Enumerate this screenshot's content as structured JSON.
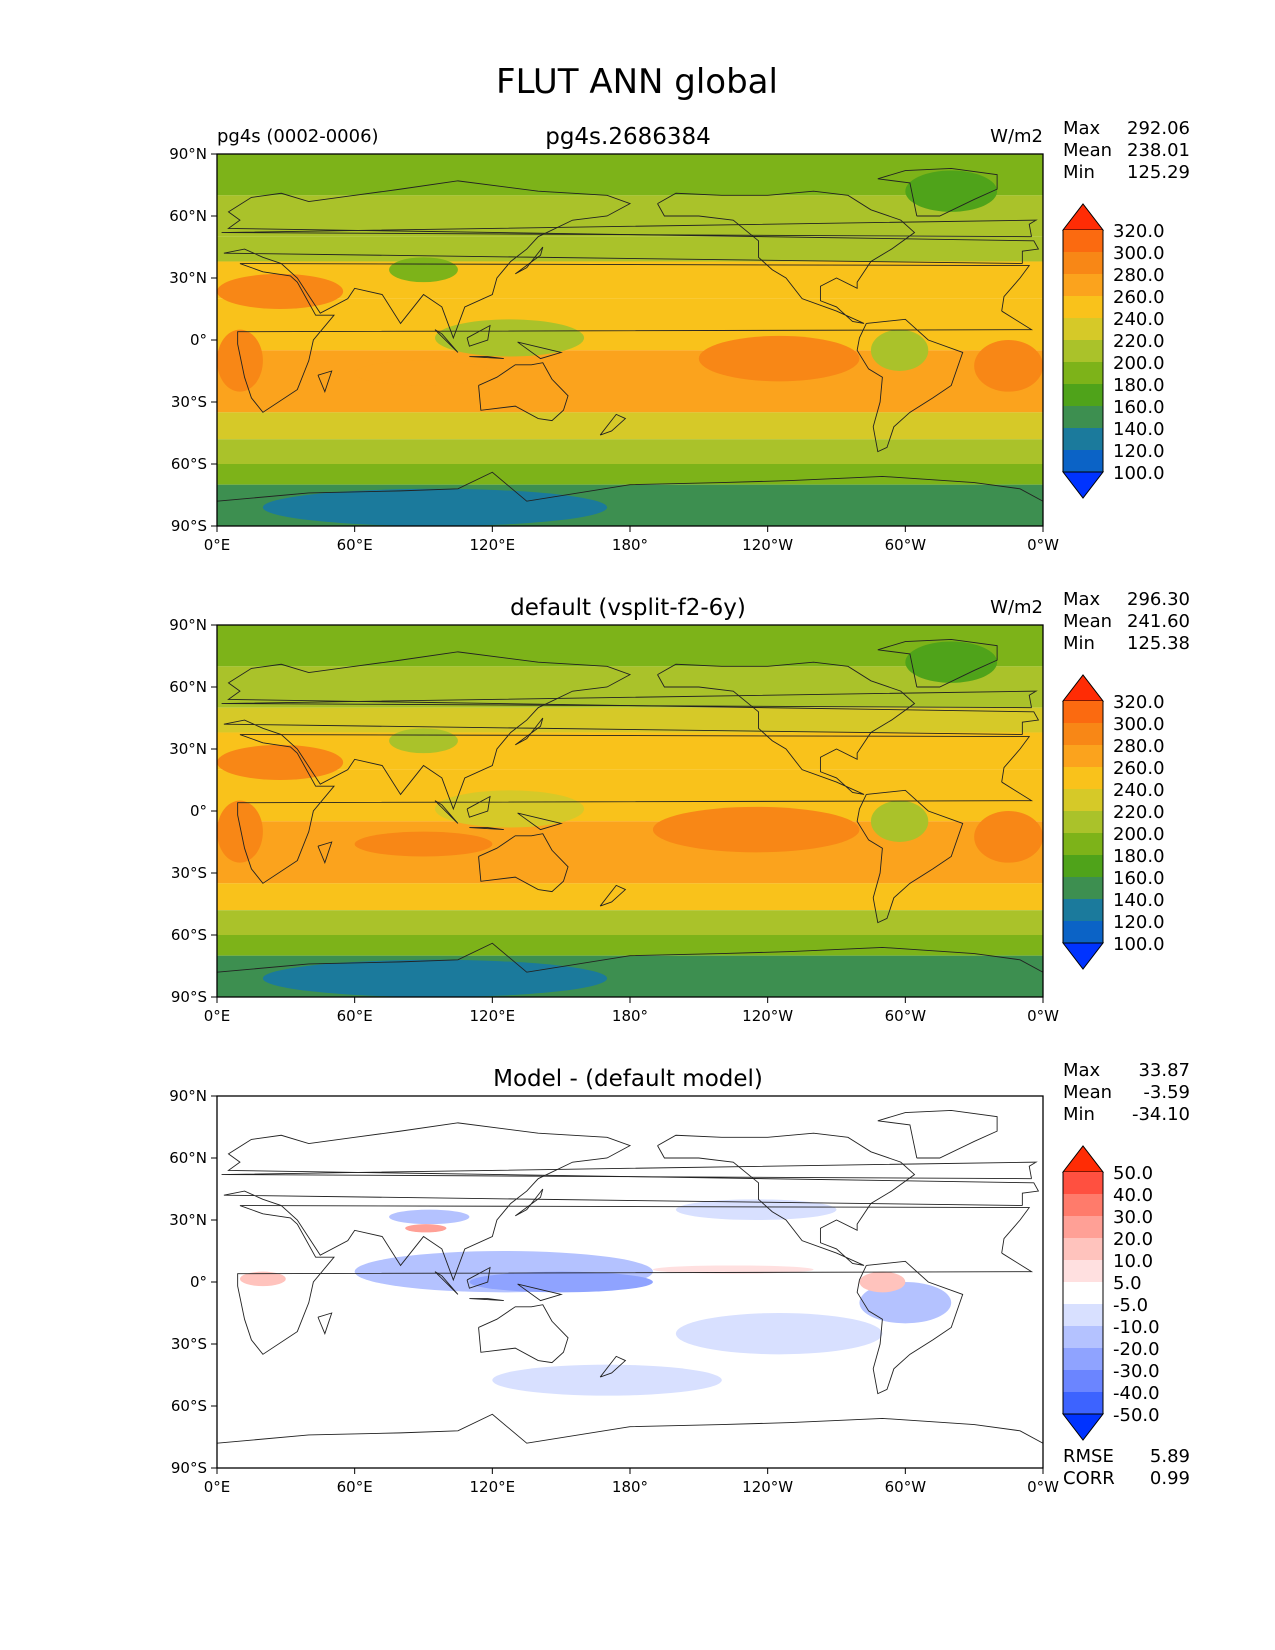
{
  "figure": {
    "title": "FLUT ANN global"
  },
  "chart_data": [
    {
      "type": "heatmap",
      "title": "pg4s.2686384",
      "left_label": "pg4s (0002-0006)",
      "units": "W/m2",
      "stats": {
        "max_label": "Max",
        "max": "292.06",
        "mean_label": "Mean",
        "mean": "238.01",
        "min_label": "Min",
        "min": "125.29"
      },
      "colorbar": {
        "levels": [
          "100.0",
          "120.0",
          "140.0",
          "160.0",
          "180.0",
          "200.0",
          "220.0",
          "240.0",
          "260.0",
          "280.0",
          "300.0",
          "320.0"
        ],
        "colors": [
          "#0033ff",
          "#0b63c6",
          "#1b7a9c",
          "#3d8f50",
          "#4fa31a",
          "#7db319",
          "#aac22a",
          "#d6c928",
          "#f9c21b",
          "#fba31d",
          "#f88716",
          "#fb6a10",
          "#ff2c05"
        ]
      },
      "xticks": [
        "0°E",
        "60°E",
        "120°E",
        "180°",
        "120°W",
        "60°W",
        "0°W"
      ],
      "yticks": [
        "90°N",
        "60°N",
        "30°N",
        "0°",
        "30°S",
        "60°S",
        "90°S"
      ],
      "xlim": [
        0,
        360
      ],
      "ylim": [
        -90,
        90
      ],
      "field": {
        "bands": [
          {
            "lat": [
              90,
              70
            ],
            "value": 185
          },
          {
            "lat": [
              70,
              50
            ],
            "value": 200
          },
          {
            "lat": [
              50,
              38
            ],
            "value": 215
          },
          {
            "lat": [
              38,
              20
            ],
            "value": 250
          },
          {
            "lat": [
              20,
              -5
            ],
            "value": 245
          },
          {
            "lat": [
              -5,
              -35
            ],
            "value": 265
          },
          {
            "lat": [
              -35,
              -48
            ],
            "value": 232
          },
          {
            "lat": [
              -48,
              -60
            ],
            "value": 205
          },
          {
            "lat": [
              -60,
              -70
            ],
            "value": 185
          },
          {
            "lat": [
              -70,
              -90
            ],
            "value": 150
          }
        ],
        "features": [
          {
            "name": "east-pacific-warm-region",
            "lon": [
              210,
              280
            ],
            "lat": [
              2,
              -20
            ],
            "value": 285
          },
          {
            "name": "south-atlantic-warm-region",
            "lon": [
              330,
              360
            ],
            "lat": [
              0,
              -25
            ],
            "value": 285
          },
          {
            "name": "africa-warm-region",
            "lon": [
              0,
              20
            ],
            "lat": [
              5,
              -25
            ],
            "value": 285
          },
          {
            "name": "sahara-warm-region",
            "lon": [
              0,
              55
            ],
            "lat": [
              32,
              15
            ],
            "value": 285
          },
          {
            "name": "indian-ocean-warm-region",
            "lon": [
              60,
              120
            ],
            "lat": [
              -10,
              -22
            ],
            "value": 275
          },
          {
            "name": "maritime-continent-cool-region",
            "lon": [
              95,
              160
            ],
            "lat": [
              10,
              -8
            ],
            "value": 205
          },
          {
            "name": "amazon-cool-region",
            "lon": [
              285,
              310
            ],
            "lat": [
              5,
              -15
            ],
            "value": 215
          },
          {
            "name": "tibet-cool-region",
            "lon": [
              75,
              105
            ],
            "lat": [
              40,
              28
            ],
            "value": 190
          },
          {
            "name": "greenland-cool-region",
            "lon": [
              300,
              340
            ],
            "lat": [
              82,
              62
            ],
            "value": 170
          },
          {
            "name": "antarctica-cold-region",
            "lon": [
              20,
              170
            ],
            "lat": [
              -72,
              -90
            ],
            "value": 130
          }
        ]
      }
    },
    {
      "type": "heatmap",
      "title": "default (vsplit-f2-6y)",
      "left_label": "",
      "units": "W/m2",
      "stats": {
        "max_label": "Max",
        "max": "296.30",
        "mean_label": "Mean",
        "mean": "241.60",
        "min_label": "Min",
        "min": "125.38"
      },
      "colorbar": {
        "levels": [
          "100.0",
          "120.0",
          "140.0",
          "160.0",
          "180.0",
          "200.0",
          "220.0",
          "240.0",
          "260.0",
          "280.0",
          "300.0",
          "320.0"
        ],
        "colors": [
          "#0033ff",
          "#0b63c6",
          "#1b7a9c",
          "#3d8f50",
          "#4fa31a",
          "#7db319",
          "#aac22a",
          "#d6c928",
          "#f9c21b",
          "#fba31d",
          "#f88716",
          "#fb6a10",
          "#ff2c05"
        ]
      },
      "xticks": [
        "0°E",
        "60°E",
        "120°E",
        "180°",
        "120°W",
        "60°W",
        "0°W"
      ],
      "yticks": [
        "90°N",
        "60°N",
        "30°N",
        "0°",
        "30°S",
        "60°S",
        "90°S"
      ],
      "xlim": [
        0,
        360
      ],
      "ylim": [
        -90,
        90
      ],
      "field": {
        "bands": [
          {
            "lat": [
              90,
              70
            ],
            "value": 190
          },
          {
            "lat": [
              70,
              50
            ],
            "value": 205
          },
          {
            "lat": [
              50,
              38
            ],
            "value": 225
          },
          {
            "lat": [
              38,
              20
            ],
            "value": 255
          },
          {
            "lat": [
              20,
              -5
            ],
            "value": 250
          },
          {
            "lat": [
              -5,
              -35
            ],
            "value": 265
          },
          {
            "lat": [
              -35,
              -48
            ],
            "value": 245
          },
          {
            "lat": [
              -48,
              -60
            ],
            "value": 215
          },
          {
            "lat": [
              -60,
              -70
            ],
            "value": 190
          },
          {
            "lat": [
              -70,
              -90
            ],
            "value": 150
          }
        ],
        "features": [
          {
            "name": "east-pacific-warm-region",
            "lon": [
              190,
              280
            ],
            "lat": [
              2,
              -20
            ],
            "value": 285
          },
          {
            "name": "south-atlantic-warm-region",
            "lon": [
              330,
              360
            ],
            "lat": [
              0,
              -25
            ],
            "value": 285
          },
          {
            "name": "africa-warm-region",
            "lon": [
              0,
              20
            ],
            "lat": [
              5,
              -25
            ],
            "value": 285
          },
          {
            "name": "sahara-warm-region",
            "lon": [
              0,
              55
            ],
            "lat": [
              32,
              15
            ],
            "value": 285
          },
          {
            "name": "indian-ocean-warm-region",
            "lon": [
              60,
              120
            ],
            "lat": [
              -10,
              -22
            ],
            "value": 285
          },
          {
            "name": "maritime-continent-cool-region",
            "lon": [
              95,
              160
            ],
            "lat": [
              10,
              -8
            ],
            "value": 225
          },
          {
            "name": "amazon-cool-region",
            "lon": [
              285,
              310
            ],
            "lat": [
              5,
              -15
            ],
            "value": 215
          },
          {
            "name": "tibet-cool-region",
            "lon": [
              75,
              105
            ],
            "lat": [
              40,
              28
            ],
            "value": 205
          },
          {
            "name": "greenland-cool-region",
            "lon": [
              300,
              340
            ],
            "lat": [
              82,
              62
            ],
            "value": 175
          },
          {
            "name": "antarctica-cold-region",
            "lon": [
              20,
              170
            ],
            "lat": [
              -72,
              -90
            ],
            "value": 130
          }
        ]
      }
    },
    {
      "type": "heatmap",
      "title": "Model - (default model)",
      "left_label": "",
      "units": "",
      "stats": {
        "max_label": "Max",
        "max": "33.87",
        "mean_label": "Mean",
        "mean": "-3.59",
        "min_label": "Min",
        "min": "-34.10"
      },
      "colorbar": {
        "levels": [
          "-50.0",
          "-40.0",
          "-30.0",
          "-20.0",
          "-10.0",
          "-5.0",
          "5.0",
          "10.0",
          "20.0",
          "30.0",
          "40.0",
          "50.0"
        ],
        "colors": [
          "#0033ff",
          "#3d63ff",
          "#6b85ff",
          "#8fa3ff",
          "#b4c2ff",
          "#d8e0ff",
          "#ffffff",
          "#ffe0e0",
          "#ffc3bd",
          "#ffa096",
          "#ff7b6b",
          "#ff5040",
          "#ff2c05"
        ]
      },
      "xticks": [
        "0°E",
        "60°E",
        "120°E",
        "180°",
        "120°W",
        "60°W",
        "0°W"
      ],
      "yticks": [
        "90°N",
        "60°N",
        "30°N",
        "0°",
        "30°S",
        "60°S",
        "90°S"
      ],
      "xlim": [
        0,
        360
      ],
      "ylim": [
        -90,
        90
      ],
      "metrics": {
        "rmse_label": "RMSE",
        "rmse": "5.89",
        "corr_label": "CORR",
        "corr": "0.99"
      },
      "field": {
        "bands": [
          {
            "lat": [
              90,
              -90
            ],
            "value": 0
          }
        ],
        "features": [
          {
            "name": "indian-ocean-negative-region",
            "lon": [
              60,
              190
            ],
            "lat": [
              15,
              -5
            ],
            "value": -12
          },
          {
            "name": "maritime-negative-region",
            "lon": [
              110,
              190
            ],
            "lat": [
              5,
              -5
            ],
            "value": -22
          },
          {
            "name": "tibet-negative-region",
            "lon": [
              75,
              110
            ],
            "lat": [
              35,
              28
            ],
            "value": -12
          },
          {
            "name": "tibet-positive-region",
            "lon": [
              82,
              100
            ],
            "lat": [
              28,
              24
            ],
            "value": 25
          },
          {
            "name": "amazon-negative-region",
            "lon": [
              280,
              320
            ],
            "lat": [
              0,
              -20
            ],
            "value": -20
          },
          {
            "name": "amazon-positive-region",
            "lon": [
              280,
              300
            ],
            "lat": [
              5,
              -5
            ],
            "value": 18
          },
          {
            "name": "itcz-positive-region",
            "lon": [
              190,
              260
            ],
            "lat": [
              8,
              4
            ],
            "value": 7
          },
          {
            "name": "africa-positive-region",
            "lon": [
              10,
              30
            ],
            "lat": [
              5,
              -2
            ],
            "value": 12
          },
          {
            "name": "southern-ocean-negative-region",
            "lon": [
              120,
              220
            ],
            "lat": [
              -40,
              -55
            ],
            "value": -8
          },
          {
            "name": "south-pacific-negative-region",
            "lon": [
              200,
              290
            ],
            "lat": [
              -15,
              -35
            ],
            "value": -8
          },
          {
            "name": "north-pacific-negative-region",
            "lon": [
              200,
              270
            ],
            "lat": [
              40,
              30
            ],
            "value": -8
          }
        ]
      }
    }
  ]
}
